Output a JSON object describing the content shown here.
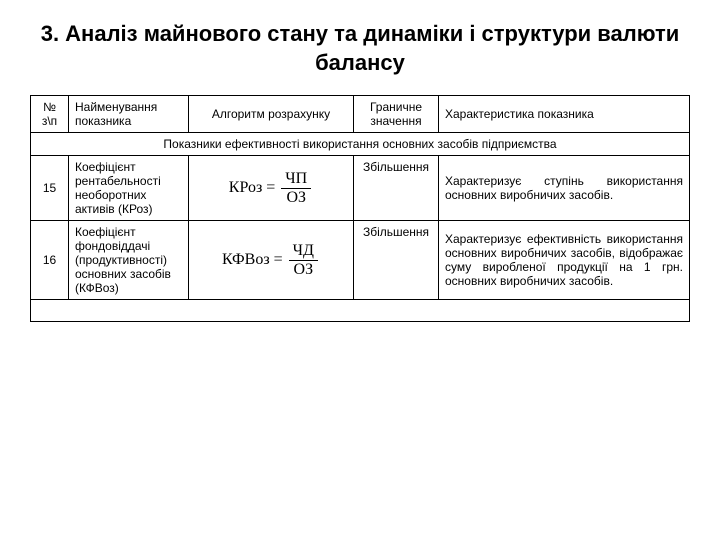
{
  "title": "3. Аналіз майнового стану та динаміки і структури валюти балансу",
  "headers": {
    "num": "№ з\\п",
    "name": "Найменування показника",
    "algo": "Алгоритм розрахунку",
    "limit": "Граничне значення",
    "char": "Характеристика показника"
  },
  "section_title": "Показники ефективності використання основних засобів підприємства",
  "rows": [
    {
      "num": "15",
      "name": "Коефіцієнт рентабельності необоротних активів (КРоз)",
      "formula_lhs": "КРоз =",
      "formula_top": "ЧП",
      "formula_bot": "ОЗ",
      "limit": "Збільшення",
      "char": "Характеризує ступінь використання основних виробничих засобів."
    },
    {
      "num": "16",
      "name": "Коефіцієнт фондовіддачі (продуктивності) основних засобів (КФВоз)",
      "formula_lhs": "КФВоз =",
      "formula_top": "ЧД",
      "formula_bot": "ОЗ",
      "limit": "Збільшення",
      "char": "Характеризує ефективність використання основних виробничих засобів, відображає суму виробленої продукції на 1 грн. основних виробничих засобів."
    }
  ]
}
